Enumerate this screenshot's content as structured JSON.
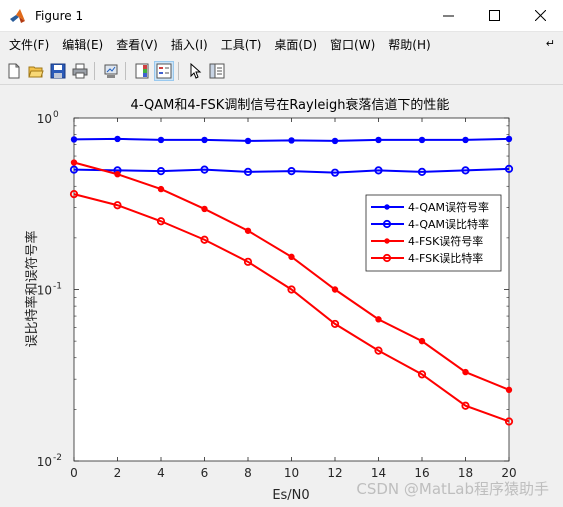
{
  "window": {
    "title": "Figure 1",
    "controls": {
      "minimize": "—",
      "maximize": "☐",
      "close": "✕"
    }
  },
  "menu": {
    "items": [
      "文件(F)",
      "编辑(E)",
      "查看(V)",
      "插入(I)",
      "工具(T)",
      "桌面(D)",
      "窗口(W)",
      "帮助(H)"
    ],
    "overflow_icon": "arrow-icon"
  },
  "toolbar": {
    "buttons": [
      "new-figure-icon",
      "open-file-icon",
      "save-icon",
      "print-icon",
      "link-plot-icon",
      "insert-colorbar-icon",
      "insert-legend-icon",
      "pointer-icon",
      "property-inspector-icon"
    ]
  },
  "watermark": "CSDN @MatLab程序猿助手",
  "chart_data": {
    "type": "line",
    "title": "4-QAM和4-FSK调制信号在Rayleigh衰落信道下的性能",
    "xlabel": "Es/N0",
    "ylabel": "误比特率和误符号率",
    "xlim": [
      0,
      20
    ],
    "ylim": [
      0.01,
      1
    ],
    "yscale": "log",
    "x_ticks": [
      "0",
      "2",
      "4",
      "6",
      "8",
      "10",
      "12",
      "14",
      "16",
      "18",
      "20"
    ],
    "y_ticks": [
      {
        "value": 1,
        "base": "10",
        "exp": "0"
      },
      {
        "value": 0.1,
        "base": "10",
        "exp": "-1"
      },
      {
        "value": 0.01,
        "base": "10",
        "exp": "-2"
      }
    ],
    "grid": false,
    "legend_position": "right",
    "x": [
      0,
      2,
      4,
      6,
      8,
      10,
      12,
      14,
      16,
      18,
      20
    ],
    "series": [
      {
        "name": "4-QAM误符号率",
        "color": "#0000ff",
        "marker": "dot",
        "values": [
          0.75,
          0.755,
          0.745,
          0.745,
          0.735,
          0.74,
          0.735,
          0.745,
          0.745,
          0.745,
          0.755
        ]
      },
      {
        "name": "4-QAM误比特率",
        "color": "#0000ff",
        "marker": "circle",
        "values": [
          0.5,
          0.495,
          0.49,
          0.5,
          0.485,
          0.49,
          0.48,
          0.495,
          0.485,
          0.495,
          0.505
        ]
      },
      {
        "name": "4-FSK误符号率",
        "color": "#ff0000",
        "marker": "dot",
        "values": [
          0.55,
          0.47,
          0.385,
          0.295,
          0.22,
          0.155,
          0.1,
          0.067,
          0.05,
          0.033,
          0.026
        ]
      },
      {
        "name": "4-FSK误比特率",
        "color": "#ff0000",
        "marker": "circle",
        "values": [
          0.36,
          0.31,
          0.25,
          0.195,
          0.145,
          0.1,
          0.063,
          0.044,
          0.032,
          0.021,
          0.017
        ]
      }
    ]
  }
}
